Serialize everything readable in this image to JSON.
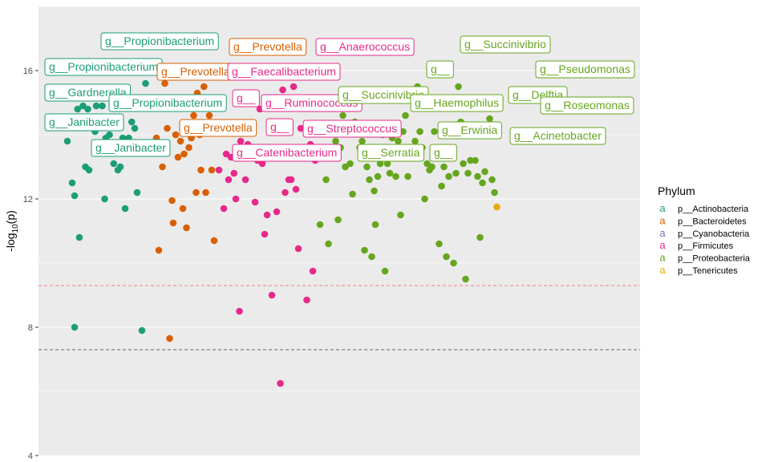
{
  "chart_data": {
    "type": "scatter",
    "title": "",
    "xlabel": "",
    "ylabel": "-log10(p)",
    "ylim": [
      4,
      18
    ],
    "xlim": [
      0,
      1
    ],
    "y_ticks": [
      "4",
      "8",
      "12",
      "16"
    ],
    "grid": true,
    "threshold_lines": [
      {
        "y": 9.3,
        "color": "#f08080",
        "style": "dashed"
      },
      {
        "y": 7.3,
        "color": "#666666",
        "style": "dashed"
      }
    ],
    "legend": {
      "title": "Phylum",
      "position": "right",
      "key_glyph": "a",
      "entries": [
        {
          "name": "p__Actinobacteria",
          "color": "#1b9e77"
        },
        {
          "name": "p__Bacteroidetes",
          "color": "#d95f02"
        },
        {
          "name": "p__Cyanobacteria",
          "color": "#7570b3"
        },
        {
          "name": "p__Firmicutes",
          "color": "#e7298a"
        },
        {
          "name": "p__Proteobacteria",
          "color": "#66a61e"
        },
        {
          "name": "p__Tenericutes",
          "color": "#e6ab02"
        }
      ]
    },
    "series": [
      {
        "name": "p__Actinobacteria",
        "points": [
          [
            0.048,
            13.8
          ],
          [
            0.056,
            12.5
          ],
          [
            0.06,
            12.1
          ],
          [
            0.065,
            14.8
          ],
          [
            0.068,
            10.8
          ],
          [
            0.074,
            14.9
          ],
          [
            0.078,
            13.0
          ],
          [
            0.082,
            14.8
          ],
          [
            0.084,
            12.9
          ],
          [
            0.088,
            14.5
          ],
          [
            0.094,
            14.1
          ],
          [
            0.096,
            14.9
          ],
          [
            0.1,
            14.5
          ],
          [
            0.106,
            14.9
          ],
          [
            0.108,
            14.3
          ],
          [
            0.11,
            12.0
          ],
          [
            0.112,
            13.9
          ],
          [
            0.118,
            14.0
          ],
          [
            0.122,
            14.3
          ],
          [
            0.125,
            13.1
          ],
          [
            0.128,
            15.0
          ],
          [
            0.132,
            12.9
          ],
          [
            0.134,
            14.5
          ],
          [
            0.136,
            13.0
          ],
          [
            0.14,
            13.9
          ],
          [
            0.144,
            11.7
          ],
          [
            0.15,
            13.9
          ],
          [
            0.155,
            14.4
          ],
          [
            0.16,
            14.2
          ],
          [
            0.164,
            12.2
          ],
          [
            0.178,
            15.6
          ],
          [
            0.06,
            8.0
          ],
          [
            0.172,
            7.9
          ]
        ]
      },
      {
        "name": "p__Bacteroidetes",
        "points": [
          [
            0.196,
            13.9
          ],
          [
            0.2,
            10.4
          ],
          [
            0.206,
            13.0
          ],
          [
            0.21,
            15.6
          ],
          [
            0.214,
            14.2
          ],
          [
            0.218,
            7.65
          ],
          [
            0.222,
            11.95
          ],
          [
            0.224,
            11.25
          ],
          [
            0.228,
            14.0
          ],
          [
            0.232,
            13.3
          ],
          [
            0.236,
            13.8
          ],
          [
            0.24,
            11.7
          ],
          [
            0.242,
            13.4
          ],
          [
            0.246,
            11.1
          ],
          [
            0.25,
            13.6
          ],
          [
            0.254,
            13.9
          ],
          [
            0.258,
            14.6
          ],
          [
            0.262,
            12.2
          ],
          [
            0.264,
            15.3
          ],
          [
            0.268,
            14.0
          ],
          [
            0.27,
            12.9
          ],
          [
            0.275,
            15.5
          ],
          [
            0.278,
            12.2
          ],
          [
            0.284,
            14.6
          ],
          [
            0.288,
            12.9
          ],
          [
            0.292,
            10.7
          ]
        ]
      },
      {
        "name": "p__Firmicutes",
        "points": [
          [
            0.3,
            12.9
          ],
          [
            0.308,
            11.7
          ],
          [
            0.312,
            13.4
          ],
          [
            0.316,
            12.6
          ],
          [
            0.32,
            13.3
          ],
          [
            0.325,
            12.8
          ],
          [
            0.328,
            12.0
          ],
          [
            0.334,
            8.5
          ],
          [
            0.336,
            13.8
          ],
          [
            0.34,
            15.3
          ],
          [
            0.344,
            12.6
          ],
          [
            0.348,
            13.7
          ],
          [
            0.35,
            14.2
          ],
          [
            0.356,
            15.3
          ],
          [
            0.36,
            11.9
          ],
          [
            0.364,
            13.2
          ],
          [
            0.368,
            14.8
          ],
          [
            0.372,
            13.1
          ],
          [
            0.376,
            10.9
          ],
          [
            0.38,
            11.5
          ],
          [
            0.384,
            14.4
          ],
          [
            0.388,
            9.0
          ],
          [
            0.392,
            13.3
          ],
          [
            0.396,
            11.6
          ],
          [
            0.402,
            6.25
          ],
          [
            0.406,
            15.4
          ],
          [
            0.41,
            12.2
          ],
          [
            0.416,
            12.6
          ],
          [
            0.42,
            12.6
          ],
          [
            0.424,
            15.5
          ],
          [
            0.428,
            12.3
          ],
          [
            0.432,
            10.45
          ],
          [
            0.436,
            14.2
          ],
          [
            0.44,
            13.4
          ],
          [
            0.446,
            8.85
          ],
          [
            0.452,
            13.7
          ],
          [
            0.456,
            9.75
          ],
          [
            0.46,
            13.2
          ]
        ]
      },
      {
        "name": "p__Proteobacteria",
        "points": [
          [
            0.468,
            11.2
          ],
          [
            0.474,
            13.6
          ],
          [
            0.478,
            12.6
          ],
          [
            0.482,
            10.6
          ],
          [
            0.486,
            13.4
          ],
          [
            0.49,
            14.2
          ],
          [
            0.494,
            13.8
          ],
          [
            0.498,
            11.35
          ],
          [
            0.502,
            13.6
          ],
          [
            0.506,
            14.6
          ],
          [
            0.51,
            13.0
          ],
          [
            0.514,
            14.9
          ],
          [
            0.518,
            13.1
          ],
          [
            0.522,
            12.15
          ],
          [
            0.526,
            14.4
          ],
          [
            0.53,
            14.3
          ],
          [
            0.534,
            13.6
          ],
          [
            0.538,
            13.8
          ],
          [
            0.542,
            10.4
          ],
          [
            0.546,
            13.0
          ],
          [
            0.55,
            12.6
          ],
          [
            0.554,
            10.2
          ],
          [
            0.558,
            12.25
          ],
          [
            0.56,
            11.2
          ],
          [
            0.564,
            12.7
          ],
          [
            0.568,
            13.1
          ],
          [
            0.572,
            14.0
          ],
          [
            0.576,
            9.75
          ],
          [
            0.58,
            13.1
          ],
          [
            0.584,
            12.8
          ],
          [
            0.588,
            13.9
          ],
          [
            0.594,
            12.7
          ],
          [
            0.598,
            13.8
          ],
          [
            0.602,
            11.5
          ],
          [
            0.606,
            14.1
          ],
          [
            0.61,
            14.6
          ],
          [
            0.614,
            12.7
          ],
          [
            0.618,
            13.35
          ],
          [
            0.622,
            13.6
          ],
          [
            0.626,
            13.8
          ],
          [
            0.63,
            15.5
          ],
          [
            0.634,
            14.1
          ],
          [
            0.638,
            13.6
          ],
          [
            0.642,
            12.0
          ],
          [
            0.646,
            13.1
          ],
          [
            0.65,
            12.9
          ],
          [
            0.654,
            13.0
          ],
          [
            0.658,
            14.1
          ],
          [
            0.662,
            13.5
          ],
          [
            0.666,
            10.6
          ],
          [
            0.67,
            12.4
          ],
          [
            0.674,
            13.0
          ],
          [
            0.678,
            10.2
          ],
          [
            0.682,
            12.7
          ],
          [
            0.686,
            14.3
          ],
          [
            0.69,
            10.0
          ],
          [
            0.694,
            12.8
          ],
          [
            0.698,
            15.5
          ],
          [
            0.702,
            14.4
          ],
          [
            0.706,
            13.1
          ],
          [
            0.71,
            9.5
          ],
          [
            0.714,
            12.8
          ],
          [
            0.718,
            13.2
          ],
          [
            0.722,
            14.0
          ],
          [
            0.726,
            13.2
          ],
          [
            0.73,
            12.7
          ],
          [
            0.734,
            10.8
          ],
          [
            0.738,
            12.5
          ],
          [
            0.742,
            12.85
          ],
          [
            0.75,
            14.5
          ],
          [
            0.754,
            12.6
          ],
          [
            0.758,
            12.2
          ]
        ]
      },
      {
        "name": "p__Tenericutes",
        "points": [
          [
            0.762,
            11.75
          ]
        ]
      }
    ],
    "annotations": [
      {
        "text": "g__Propionibacterium",
        "series": "p__Actinobacteria"
      },
      {
        "text": "g__Propionibacterium",
        "series": "p__Actinobacteria"
      },
      {
        "text": "g__Gardnerella",
        "series": "p__Actinobacteria"
      },
      {
        "text": "g__Propionibacterium",
        "series": "p__Actinobacteria"
      },
      {
        "text": "g__Janibacter",
        "series": "p__Actinobacteria"
      },
      {
        "text": "g__Janibacter",
        "series": "p__Actinobacteria"
      },
      {
        "text": "g__Prevotella",
        "series": "p__Bacteroidetes"
      },
      {
        "text": "g__Prevotella",
        "series": "p__Bacteroidetes"
      },
      {
        "text": "g__Prevotella",
        "series": "p__Bacteroidetes"
      },
      {
        "text": "g__Anaerococcus",
        "series": "p__Firmicutes"
      },
      {
        "text": "g__Faecalibacterium",
        "series": "p__Firmicutes"
      },
      {
        "text": "g__",
        "series": "p__Firmicutes"
      },
      {
        "text": "g__Ruminococcus",
        "series": "p__Firmicutes"
      },
      {
        "text": "g__",
        "series": "p__Firmicutes"
      },
      {
        "text": "g__Streptococcus",
        "series": "p__Firmicutes"
      },
      {
        "text": "g__Catenibacterium",
        "series": "p__Firmicutes"
      },
      {
        "text": "g__Succinivibrio",
        "series": "p__Proteobacteria"
      },
      {
        "text": "g__",
        "series": "p__Proteobacteria"
      },
      {
        "text": "g__Pseudomonas",
        "series": "p__Proteobacteria"
      },
      {
        "text": "g__Succinivibrio",
        "series": "p__Proteobacteria"
      },
      {
        "text": "g__Haemophilus",
        "series": "p__Proteobacteria"
      },
      {
        "text": "g__Delftia",
        "series": "p__Proteobacteria"
      },
      {
        "text": "g__Roseomonas",
        "series": "p__Proteobacteria"
      },
      {
        "text": "g__Erwinia",
        "series": "p__Proteobacteria"
      },
      {
        "text": "g__Acinetobacter",
        "series": "p__Proteobacteria"
      },
      {
        "text": "g__Serratia",
        "series": "p__Proteobacteria"
      },
      {
        "text": "g__",
        "series": "p__Proteobacteria"
      }
    ]
  }
}
